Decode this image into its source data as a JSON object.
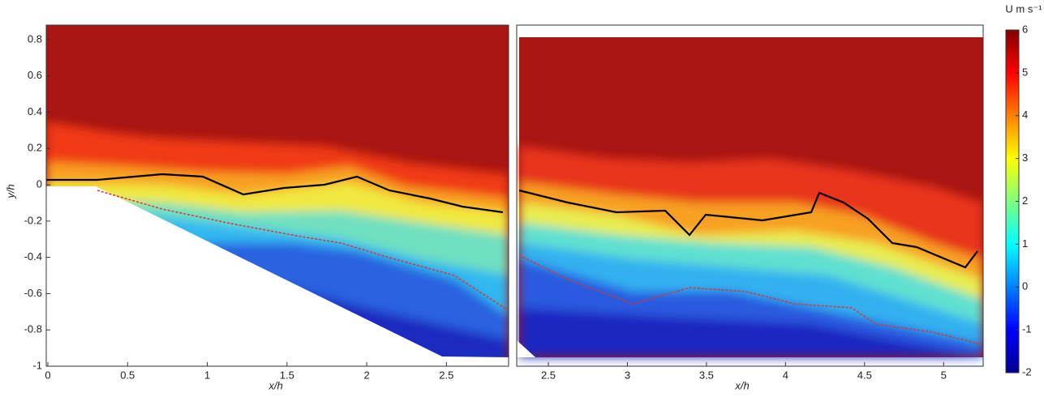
{
  "chart_data": [
    {
      "type": "heatmap",
      "xlabel": "x/h",
      "ylabel": "y/h",
      "xlim": [
        -0.01,
        2.89
      ],
      "ylim": [
        -1,
        0.88
      ],
      "xticks": [
        0,
        0.5,
        1,
        1.5,
        2,
        2.5
      ],
      "yticks": [
        -1,
        -0.8,
        -0.6,
        -0.4,
        -0.2,
        0,
        0.2,
        0.4,
        0.6,
        0.8
      ]
    },
    {
      "type": "heatmap",
      "xlabel": "x/h",
      "xlim": [
        2.3,
        5.25
      ],
      "ylim": [
        -1,
        0.88
      ],
      "xticks": [
        2.5,
        3,
        3.5,
        4,
        4.5,
        5
      ],
      "colorbar": {
        "label": "U m s⁻¹",
        "lim": [
          -2,
          6
        ],
        "ticks": [
          -2,
          -1,
          0,
          1,
          2,
          3,
          4,
          5,
          6
        ]
      }
    }
  ]
}
